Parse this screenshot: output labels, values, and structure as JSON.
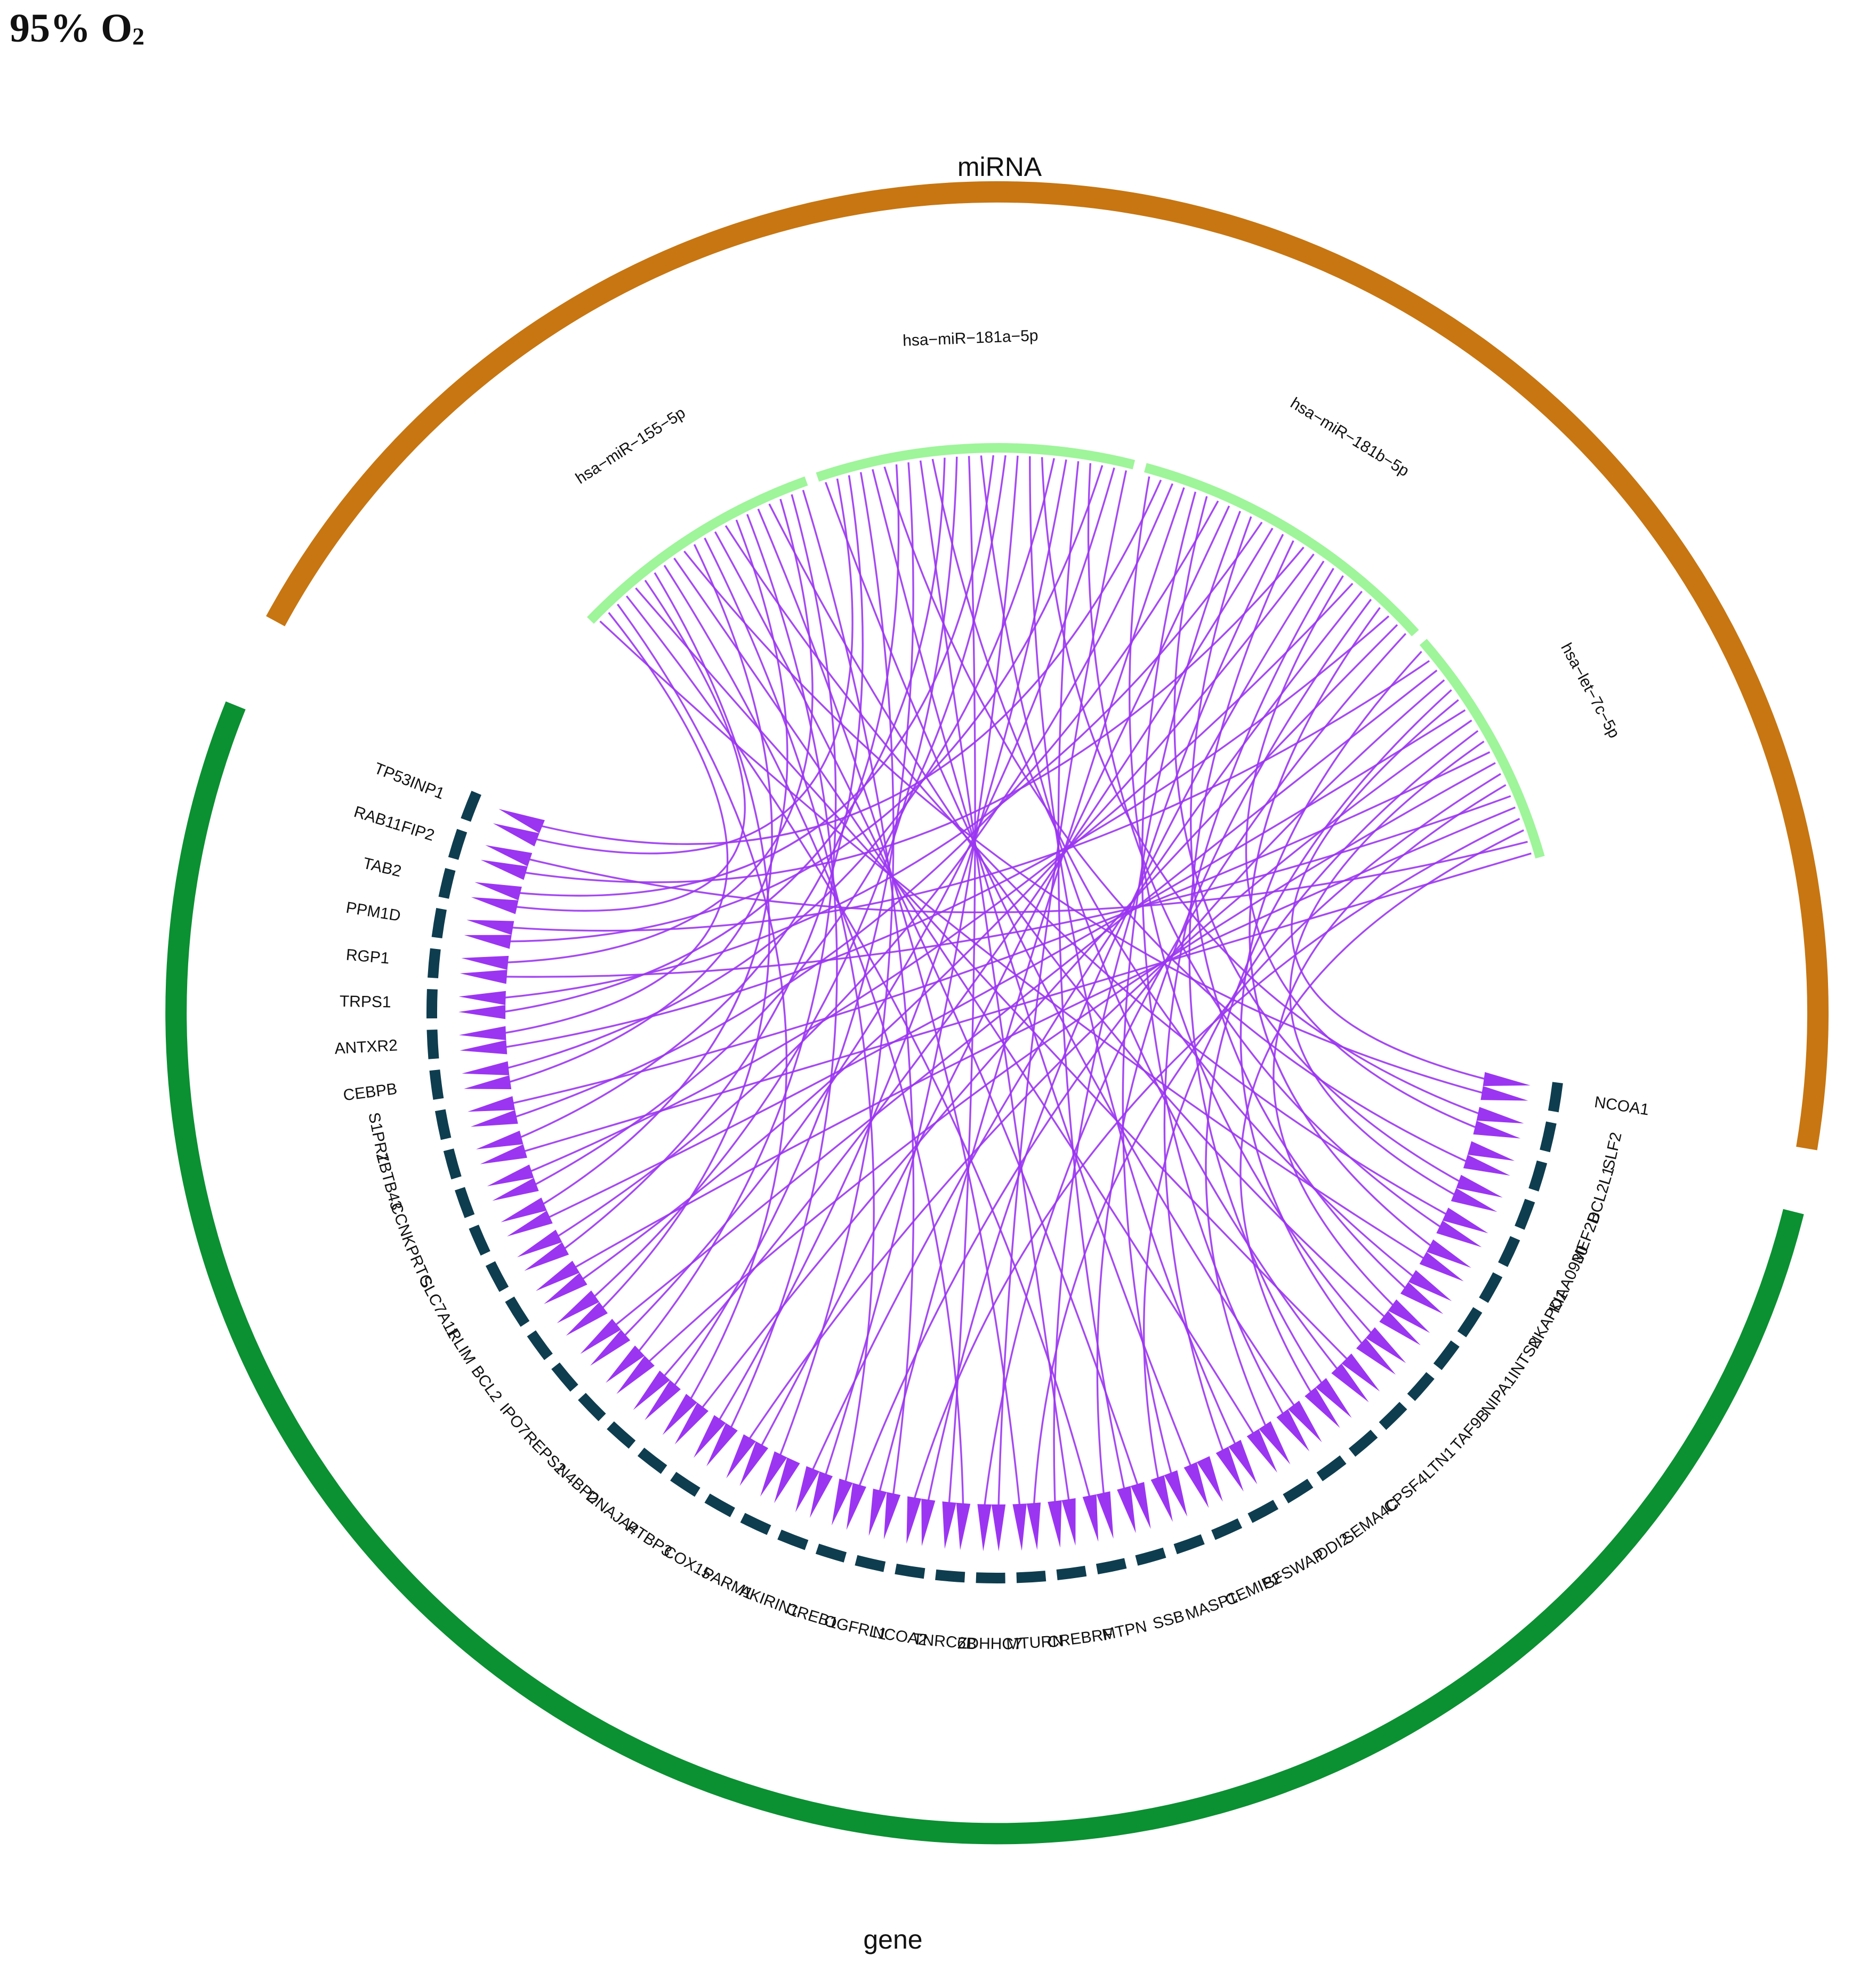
{
  "panel_title": {
    "prefix": "95% O",
    "subscript": "2"
  },
  "colors": {
    "mirna_track": "#c77612",
    "gene_track": "#0b9032",
    "mirna_sector": "#9ef59a",
    "gene_sector": "#0e3d4f",
    "links": "#9b35f2",
    "text": "#111111"
  },
  "groups": {
    "mirna": {
      "label": "miRNA"
    },
    "gene": {
      "label": "gene"
    }
  },
  "mirnas": [
    {
      "name": "hsa−miR−155−5p",
      "link_count": 21
    },
    {
      "name": "hsa−miR−181a−5p",
      "link_count": 26
    },
    {
      "name": "hsa−miR−181b−5p",
      "link_count": 26
    },
    {
      "name": "hsa−let−7c−5p",
      "link_count": 20
    }
  ],
  "genes": [
    "NCOA1",
    "SLF2",
    "BCL2L1",
    "MEF2D",
    "KIAA0930",
    "NKAPD1",
    "INTS2",
    "NIPA1",
    "TAF9B",
    "LTN1",
    "CPSF4",
    "SEMA4C",
    "DDI2",
    "SFSWAP",
    "CEMIP2",
    "MASP1",
    "SSB",
    "MTPN",
    "CREBRF",
    "MTURN",
    "ZDHHC7",
    "TNRC6B",
    "NCOA2",
    "OGFRL1",
    "CREB1",
    "AKIRIN1",
    "PARM1",
    "COX15",
    "PTBP3",
    "DNAJA4",
    "N4BP2",
    "REPS2",
    "IPO7",
    "BCL2",
    "RLIM",
    "SLC7A11",
    "PRTG",
    "CCNK",
    "ZBTB43",
    "S1PR1",
    "CEBPB",
    "ANTXR2",
    "TRPS1",
    "RGP1",
    "PPM1D",
    "TAB2",
    "RAB11FIP2",
    "TP53INP1"
  ]
}
